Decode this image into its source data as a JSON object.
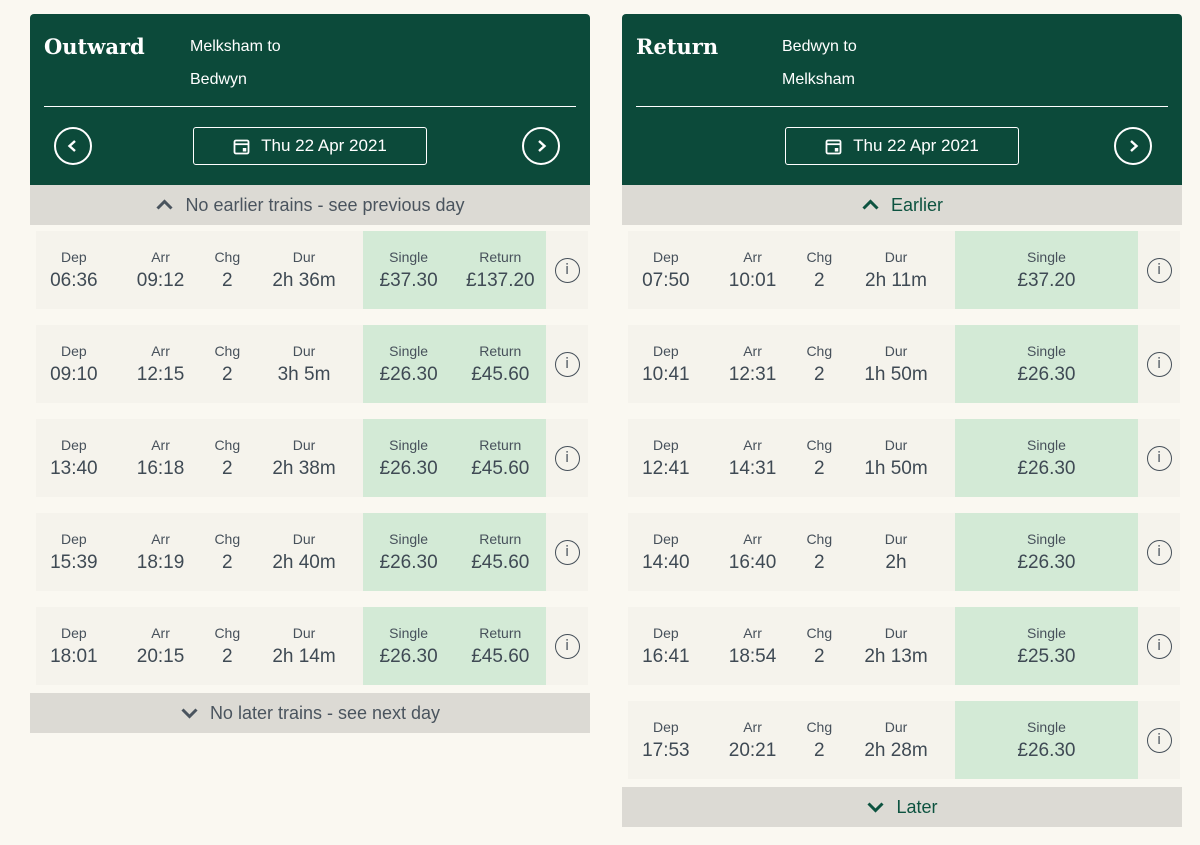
{
  "colors": {
    "header_green": "#0c4a3a",
    "price_green": "#d3ead6",
    "banner_grey": "#dcdad4",
    "row_cream": "#f5f3ec",
    "page_bg": "#faf8f1",
    "text_slate": "#454f59",
    "accent_green": "#0d5340"
  },
  "icons": {
    "calendar": "calendar-icon",
    "prev": "chevron-left-icon",
    "next": "chevron-right-icon",
    "up": "chevron-up-icon",
    "down": "chevron-down-icon",
    "info": "info-icon",
    "info_glyph": "i"
  },
  "panels": [
    {
      "title": "Outward",
      "route_line1": "Melksham to",
      "route_line2": "Bedwyn",
      "date_label": "Thu 22 Apr 2021",
      "top_banner": "No earlier trains - see previous day",
      "bottom_banner": "No later trains - see next day",
      "columns": {
        "dep": "Dep",
        "arr": "Arr",
        "chg": "Chg",
        "dur": "Dur",
        "single": "Single",
        "return": "Return"
      },
      "rows": [
        {
          "dep": "06:36",
          "arr": "09:12",
          "chg": "2",
          "dur": "2h 36m",
          "single": "£37.30",
          "return": "£137.20"
        },
        {
          "dep": "09:10",
          "arr": "12:15",
          "chg": "2",
          "dur": "3h 5m",
          "single": "£26.30",
          "return": "£45.60"
        },
        {
          "dep": "13:40",
          "arr": "16:18",
          "chg": "2",
          "dur": "2h 38m",
          "single": "£26.30",
          "return": "£45.60"
        },
        {
          "dep": "15:39",
          "arr": "18:19",
          "chg": "2",
          "dur": "2h 40m",
          "single": "£26.30",
          "return": "£45.60"
        },
        {
          "dep": "18:01",
          "arr": "20:15",
          "chg": "2",
          "dur": "2h 14m",
          "single": "£26.30",
          "return": "£45.60"
        }
      ]
    },
    {
      "title": "Return",
      "route_line1": "Bedwyn to",
      "route_line2": "Melksham",
      "date_label": "Thu 22 Apr 2021",
      "top_banner": "Earlier",
      "bottom_banner": "Later",
      "columns": {
        "dep": "Dep",
        "arr": "Arr",
        "chg": "Chg",
        "dur": "Dur",
        "single": "Single"
      },
      "rows": [
        {
          "dep": "07:50",
          "arr": "10:01",
          "chg": "2",
          "dur": "2h 11m",
          "single": "£37.20"
        },
        {
          "dep": "10:41",
          "arr": "12:31",
          "chg": "2",
          "dur": "1h 50m",
          "single": "£26.30"
        },
        {
          "dep": "12:41",
          "arr": "14:31",
          "chg": "2",
          "dur": "1h 50m",
          "single": "£26.30"
        },
        {
          "dep": "14:40",
          "arr": "16:40",
          "chg": "2",
          "dur": "2h",
          "single": "£26.30"
        },
        {
          "dep": "16:41",
          "arr": "18:54",
          "chg": "2",
          "dur": "2h 13m",
          "single": "£25.30"
        },
        {
          "dep": "17:53",
          "arr": "20:21",
          "chg": "2",
          "dur": "2h 28m",
          "single": "£26.30"
        }
      ]
    }
  ]
}
